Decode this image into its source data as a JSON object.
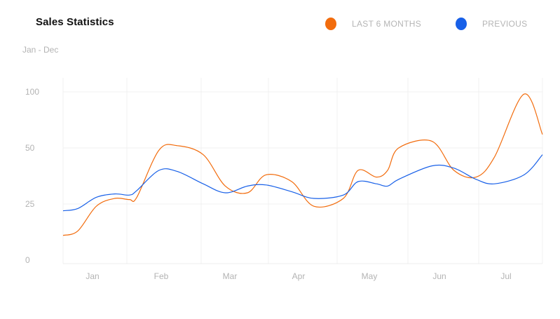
{
  "header": {
    "title": "Sales Statistics",
    "subtitle": "Jan - Dec"
  },
  "legend": [
    {
      "label": "LAST 6 MONTHS",
      "color": "#f26c0d"
    },
    {
      "label": "PREVIOUS",
      "color": "#1860e8"
    }
  ],
  "chart_data": {
    "type": "line",
    "title": "Sales Statistics",
    "subtitle": "Jan - Dec",
    "categories": [
      "Jan",
      "Feb",
      "Mar",
      "Apr",
      "May",
      "Jun",
      "Jul"
    ],
    "y_ticks": [
      0,
      25,
      50,
      100
    ],
    "y_ticks_note": "non-linear axis: ticks evenly spaced",
    "legend_position": "top-right",
    "grid": true,
    "x": [
      0,
      0.2,
      0.45,
      0.7,
      0.9,
      1.0,
      1.3,
      1.55,
      1.9,
      2.2,
      2.5,
      2.75,
      3.1,
      3.4,
      3.8,
      4.0,
      4.25,
      4.4,
      4.55,
      5.0,
      5.3,
      5.6,
      5.85,
      6.25,
      6.5
    ],
    "series": [
      {
        "name": "LAST 6 MONTHS",
        "color": "#f26c0d",
        "values": [
          11,
          13,
          24,
          27.5,
          27,
          28,
          49,
          52,
          47,
          33,
          30,
          38,
          35,
          24,
          27.5,
          40,
          37,
          40,
          50,
          56,
          40,
          37,
          46,
          98,
          62
        ]
      },
      {
        "name": "PREVIOUS",
        "color": "#1860e8",
        "values": [
          22,
          23,
          28,
          29.5,
          29,
          31,
          40,
          39.5,
          34,
          30,
          33,
          33.5,
          30.5,
          27.5,
          29,
          35,
          34,
          33,
          36,
          42,
          41,
          36,
          34,
          38,
          47
        ]
      }
    ]
  }
}
